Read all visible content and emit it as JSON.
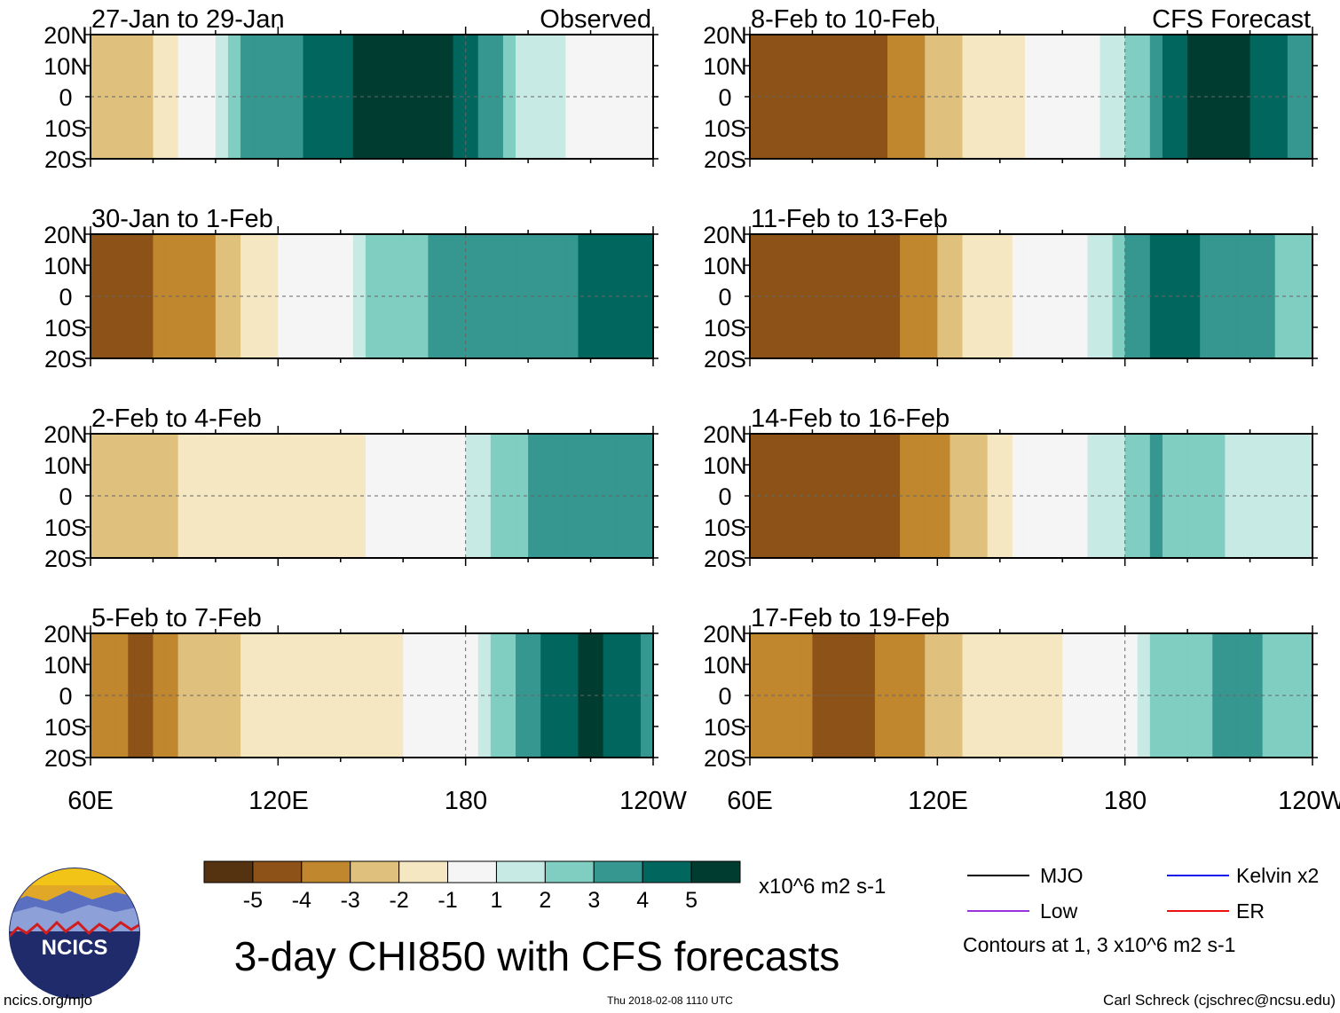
{
  "chart_data": {
    "type": "heatmap",
    "title": "3-day CHI850 with CFS forecasts",
    "variable": "CHI850 anomaly",
    "units": "x10^6 m2 s-1",
    "xaxis_ticks": [
      "60E",
      "120E",
      "180",
      "120W"
    ],
    "yaxis_ticks": [
      "20N",
      "10N",
      "0",
      "10S",
      "20S"
    ],
    "lon_range": [
      60,
      240
    ],
    "lat_range": [
      -20,
      20
    ],
    "columns": [
      {
        "label": "Observed",
        "panels": [
          "27-Jan to 29-Jan",
          "30-Jan to 1-Feb",
          "2-Feb to 4-Feb",
          "5-Feb to 7-Feb"
        ]
      },
      {
        "label": "CFS Forecast",
        "panels": [
          "8-Feb to 10-Feb",
          "11-Feb to 13-Feb",
          "14-Feb to 16-Feb",
          "17-Feb to 19-Feb"
        ]
      }
    ],
    "panel_profiles": [
      {
        "label": "27-Jan to 29-Jan",
        "pattern": [
          [
            60,
            -2
          ],
          [
            75,
            -2.5
          ],
          [
            90,
            -0.5
          ],
          [
            100,
            0.5
          ],
          [
            110,
            3
          ],
          [
            130,
            4
          ],
          [
            150,
            5.5
          ],
          [
            175,
            5
          ],
          [
            190,
            3
          ],
          [
            200,
            1.5
          ],
          [
            220,
            0.5
          ],
          [
            240,
            0.2
          ]
        ]
      },
      {
        "label": "30-Jan to 1-Feb",
        "pattern": [
          [
            60,
            -4.5
          ],
          [
            80,
            -4
          ],
          [
            100,
            -3
          ],
          [
            120,
            -1
          ],
          [
            130,
            -0.5
          ],
          [
            140,
            0.5
          ],
          [
            150,
            2
          ],
          [
            170,
            3
          ],
          [
            200,
            3.5
          ],
          [
            230,
            4.5
          ],
          [
            240,
            4
          ]
        ]
      },
      {
        "label": "2-Feb to 4-Feb",
        "pattern": [
          [
            60,
            -2
          ],
          [
            80,
            -2.5
          ],
          [
            100,
            -1.5
          ],
          [
            120,
            -2
          ],
          [
            140,
            -1.5
          ],
          [
            160,
            -0.5
          ],
          [
            180,
            1
          ],
          [
            200,
            3
          ],
          [
            220,
            4
          ],
          [
            240,
            3.5
          ]
        ]
      },
      {
        "label": "5-Feb to 7-Feb",
        "pattern": [
          [
            60,
            -3
          ],
          [
            75,
            -4.5
          ],
          [
            90,
            -3
          ],
          [
            110,
            -2
          ],
          [
            130,
            -1.5
          ],
          [
            160,
            -1
          ],
          [
            180,
            0.5
          ],
          [
            200,
            3.5
          ],
          [
            220,
            5.5
          ],
          [
            240,
            3.5
          ]
        ]
      },
      {
        "label": "8-Feb to 10-Feb",
        "pattern": [
          [
            60,
            -4
          ],
          [
            90,
            -5
          ],
          [
            110,
            -3.5
          ],
          [
            130,
            -2
          ],
          [
            160,
            -0.5
          ],
          [
            180,
            2
          ],
          [
            200,
            5
          ],
          [
            220,
            5
          ],
          [
            240,
            3
          ]
        ]
      },
      {
        "label": "11-Feb to 13-Feb",
        "pattern": [
          [
            60,
            -4.5
          ],
          [
            90,
            -4.5
          ],
          [
            110,
            -4
          ],
          [
            130,
            -2
          ],
          [
            150,
            -0.5
          ],
          [
            170,
            1
          ],
          [
            190,
            4.5
          ],
          [
            215,
            3.5
          ],
          [
            240,
            2.5
          ]
        ]
      },
      {
        "label": "14-Feb to 16-Feb",
        "pattern": [
          [
            60,
            -5
          ],
          [
            90,
            -5
          ],
          [
            110,
            -4
          ],
          [
            130,
            -2.5
          ],
          [
            150,
            -0.5
          ],
          [
            170,
            1
          ],
          [
            190,
            3
          ],
          [
            210,
            2
          ],
          [
            240,
            1
          ]
        ]
      },
      {
        "label": "17-Feb to 19-Feb",
        "pattern": [
          [
            60,
            -3
          ],
          [
            90,
            -4.5
          ],
          [
            110,
            -3.5
          ],
          [
            130,
            -2
          ],
          [
            160,
            -1
          ],
          [
            178,
            0
          ],
          [
            190,
            2
          ],
          [
            215,
            3.5
          ],
          [
            240,
            2
          ]
        ]
      }
    ],
    "colorbar": {
      "ticks": [
        "-5",
        "-4",
        "-3",
        "-2",
        "-1",
        "1",
        "2",
        "3",
        "4",
        "5"
      ],
      "bin_edges": [
        -6,
        -5,
        -4,
        -3,
        -2,
        -1,
        1,
        2,
        3,
        4,
        5,
        6
      ],
      "colors": [
        "#553210",
        "#8c5217",
        "#c0872f",
        "#dfc17d",
        "#f5e7c2",
        "#f5f5f5",
        "#c7eae5",
        "#80cdc1",
        "#35978f",
        "#01665e",
        "#003c30"
      ]
    },
    "legend": [
      {
        "label": "MJO",
        "color": "#000000"
      },
      {
        "label": "Kelvin x2",
        "color": "#1111ee"
      },
      {
        "label": "Low",
        "color": "#9933dd"
      },
      {
        "label": "ER",
        "color": "#ee1111"
      }
    ],
    "contour_note": "Contours at 1, 3 x10^6 m2 s-1"
  },
  "footer": {
    "left": "ncics.org/mjo",
    "center": "Thu 2018-02-08 1110 UTC",
    "right": "Carl Schreck (cjschrec@ncsu.edu)"
  },
  "logo": {
    "text": "NCICS"
  }
}
